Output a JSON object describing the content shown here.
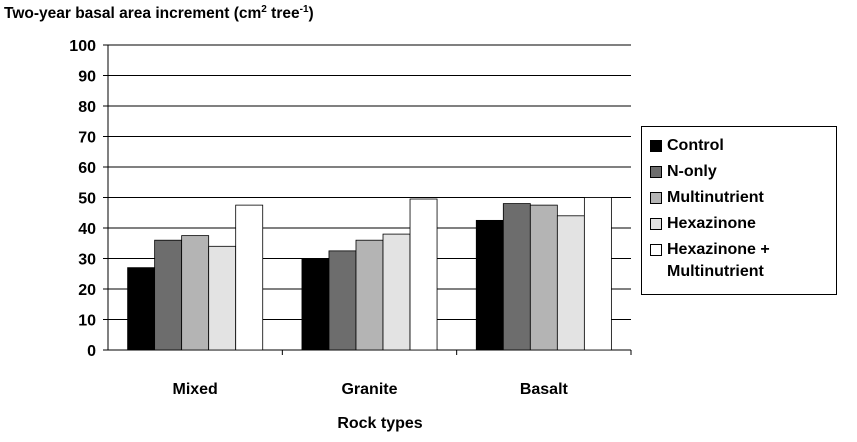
{
  "chart_data": {
    "type": "bar",
    "title_main": "Two-year basal area increment (cm",
    "title_sup1": "2",
    "title_mid": " tree",
    "title_sup2": "-1",
    "title_end": ")",
    "xlabel": "Rock types",
    "ylabel": "",
    "ylim": [
      0,
      100
    ],
    "yticks": [
      0,
      10,
      20,
      30,
      40,
      50,
      60,
      70,
      80,
      90,
      100
    ],
    "grid": true,
    "legend_position": "right",
    "categories": [
      "Mixed",
      "Granite",
      "Basalt"
    ],
    "series": [
      {
        "name": "Control",
        "color": "#000000",
        "values": [
          27,
          30,
          42.5
        ]
      },
      {
        "name": "N-only",
        "color": "#6d6d6d",
        "values": [
          36,
          32.5,
          48
        ]
      },
      {
        "name": "Multinutrient",
        "color": "#b4b4b4",
        "values": [
          37.5,
          36,
          47.5
        ]
      },
      {
        "name": "Hexazinone",
        "color": "#e3e3e3",
        "values": [
          34,
          38,
          44
        ]
      },
      {
        "name": "Hexazinone +\nMultinutrient",
        "color": "#ffffff",
        "values": [
          47.5,
          49.5,
          50
        ]
      }
    ]
  }
}
